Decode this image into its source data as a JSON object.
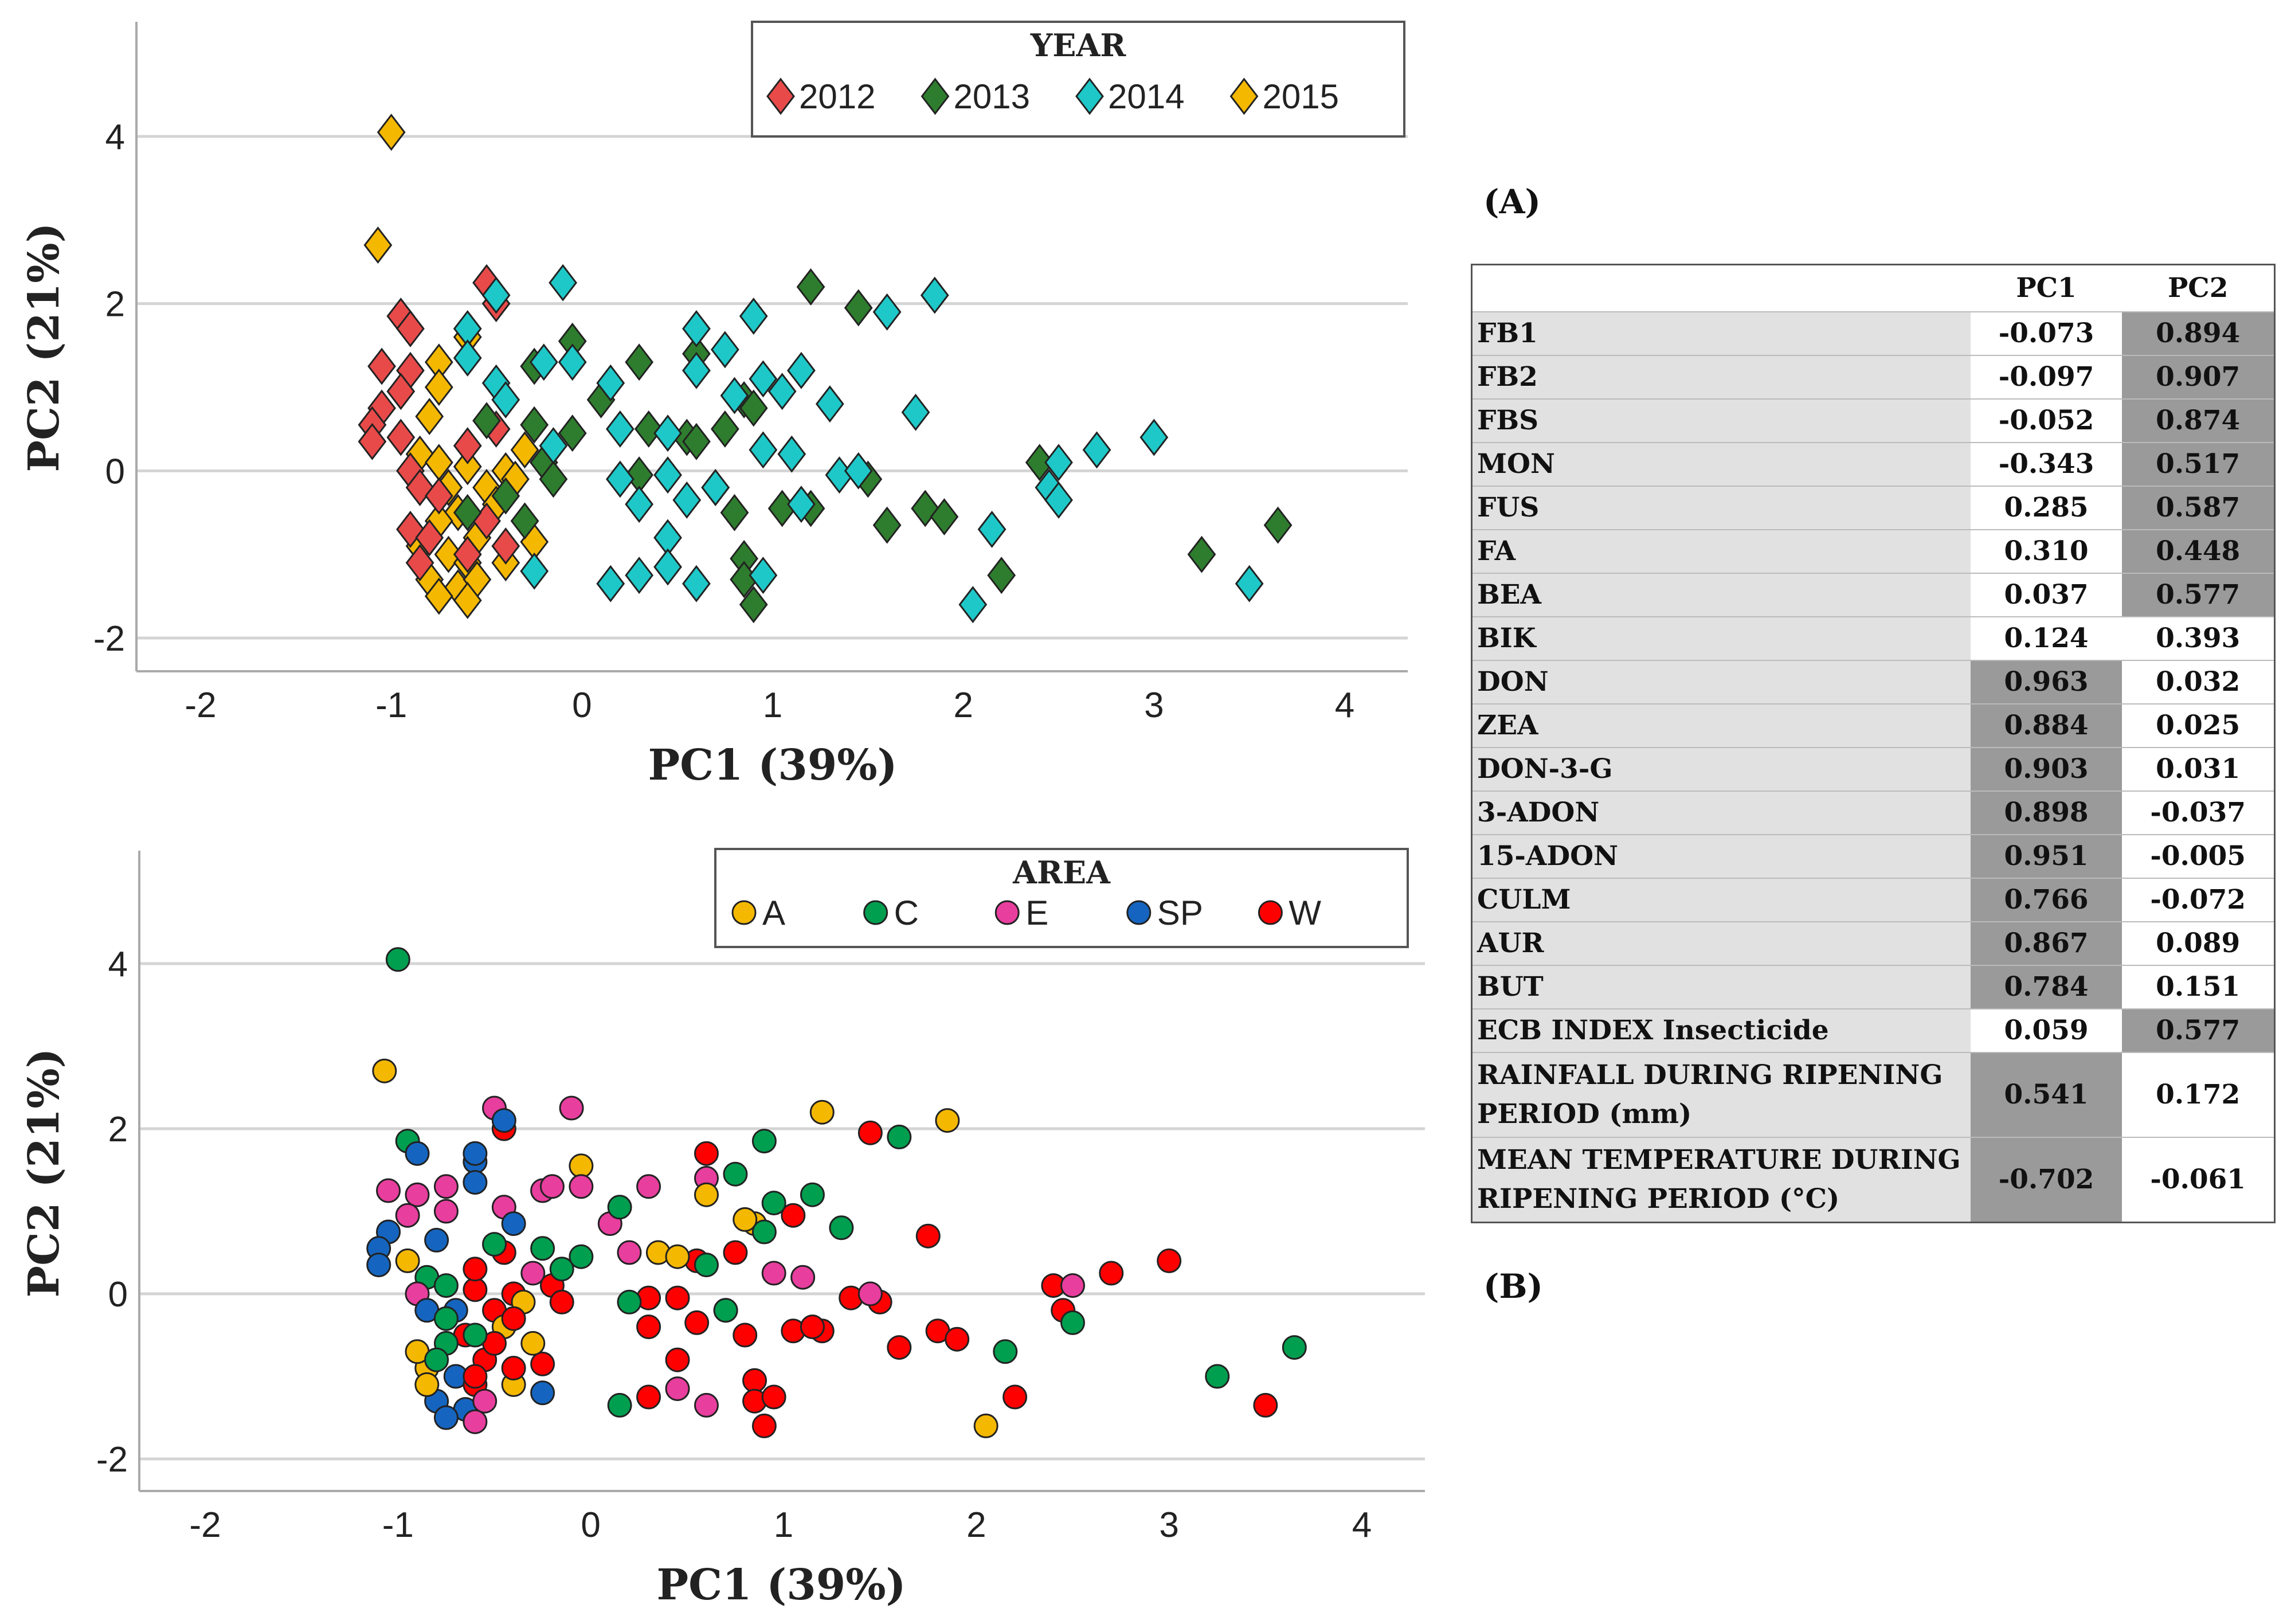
{
  "chart_data": [
    {
      "type": "scatter",
      "panel": "top",
      "marker": "diamond",
      "group_by": "year",
      "xlabel": "PC1 (39%)",
      "ylabel": "PC2 (21%)",
      "xlim": [
        -2.3,
        4.35
      ],
      "ylim": [
        -2.4,
        5.3
      ],
      "xticks": [
        -2,
        -1,
        0,
        1,
        2,
        3,
        4
      ],
      "yticks": [
        -2,
        0,
        2,
        4
      ],
      "grid": "horizontal",
      "legend_position": "top-right",
      "legend_title": "YEAR",
      "legend": [
        {
          "key": "2012",
          "label": "2012",
          "color": "#e84a4a"
        },
        {
          "key": "2013",
          "label": "2013",
          "color": "#2e7d2e"
        },
        {
          "key": "2014",
          "label": "2014",
          "color": "#1ec8c8"
        },
        {
          "key": "2015",
          "label": "2015",
          "color": "#f5b800"
        }
      ]
    },
    {
      "type": "scatter",
      "panel": "bottom",
      "marker": "circle",
      "group_by": "area",
      "xlabel": "PC1 (39%)",
      "ylabel": "PC2 (21%)",
      "xlim": [
        -2.3,
        4.3
      ],
      "ylim": [
        -2.4,
        5.3
      ],
      "xticks": [
        -2,
        -1,
        0,
        1,
        2,
        3,
        4
      ],
      "yticks": [
        -2,
        0,
        2,
        4
      ],
      "grid": "horizontal",
      "legend_position": "top-right",
      "legend_title": "AREA",
      "legend": [
        {
          "key": "A",
          "label": "A",
          "color": "#f5b800"
        },
        {
          "key": "C",
          "label": "C",
          "color": "#009e4f"
        },
        {
          "key": "E",
          "label": "E",
          "color": "#e83e9e"
        },
        {
          "key": "SP",
          "label": "SP",
          "color": "#1565c0"
        },
        {
          "key": "W",
          "label": "W",
          "color": "#ff0000"
        }
      ]
    }
  ],
  "points_fields": [
    "PC1",
    "PC2",
    "year",
    "area"
  ],
  "points": [
    [
      -1.0,
      4.05,
      "2015",
      "C"
    ],
    [
      -1.07,
      2.7,
      "2015",
      "A"
    ],
    [
      -0.6,
      1.6,
      "2015",
      "SP"
    ],
    [
      -0.75,
      1.3,
      "2015",
      "E"
    ],
    [
      -0.75,
      1.0,
      "2015",
      "E"
    ],
    [
      -0.8,
      0.65,
      "2015",
      "SP"
    ],
    [
      -0.3,
      0.25,
      "2015",
      "E"
    ],
    [
      -0.85,
      0.2,
      "2015",
      "C"
    ],
    [
      -0.75,
      0.1,
      "2015",
      "C"
    ],
    [
      -0.6,
      0.05,
      "2015",
      "W"
    ],
    [
      -0.4,
      0.0,
      "2015",
      "W"
    ],
    [
      -0.7,
      -0.2,
      "2015",
      "SP"
    ],
    [
      -0.5,
      -0.2,
      "2015",
      "W"
    ],
    [
      -0.65,
      -0.5,
      "2015",
      "W"
    ],
    [
      -0.75,
      -0.6,
      "2015",
      "C"
    ],
    [
      -0.55,
      -0.8,
      "2015",
      "W"
    ],
    [
      -0.25,
      -0.85,
      "2015",
      "W"
    ],
    [
      -0.7,
      -1.0,
      "2015",
      "SP"
    ],
    [
      -0.6,
      -1.1,
      "2015",
      "W"
    ],
    [
      -0.8,
      -1.3,
      "2015",
      "SP"
    ],
    [
      -0.65,
      -1.4,
      "2015",
      "SP"
    ],
    [
      -0.55,
      -1.3,
      "2015",
      "E"
    ],
    [
      -0.75,
      -1.5,
      "2015",
      "SP"
    ],
    [
      -0.6,
      -1.55,
      "2015",
      "E"
    ],
    [
      -0.4,
      -1.1,
      "2015",
      "A"
    ],
    [
      -0.45,
      -0.4,
      "2015",
      "A"
    ],
    [
      -0.35,
      -0.1,
      "2015",
      "A"
    ],
    [
      -0.85,
      -0.9,
      "2015",
      "A"
    ],
    [
      -0.5,
      2.25,
      "2012",
      "E"
    ],
    [
      -0.45,
      2.0,
      "2012",
      "W"
    ],
    [
      -0.95,
      1.85,
      "2012",
      "C"
    ],
    [
      -0.9,
      1.7,
      "2012",
      "SP"
    ],
    [
      -1.05,
      1.25,
      "2012",
      "E"
    ],
    [
      -0.9,
      1.2,
      "2012",
      "E"
    ],
    [
      -0.95,
      0.95,
      "2012",
      "E"
    ],
    [
      -1.05,
      0.75,
      "2012",
      "SP"
    ],
    [
      -1.1,
      0.55,
      "2012",
      "SP"
    ],
    [
      -1.1,
      0.35,
      "2012",
      "SP"
    ],
    [
      -0.95,
      0.4,
      "2012",
      "A"
    ],
    [
      -0.9,
      0.0,
      "2012",
      "E"
    ],
    [
      -0.85,
      -0.2,
      "2012",
      "SP"
    ],
    [
      -0.75,
      -0.3,
      "2012",
      "C"
    ],
    [
      -0.9,
      -0.7,
      "2012",
      "A"
    ],
    [
      -0.8,
      -0.8,
      "2012",
      "C"
    ],
    [
      -0.5,
      -0.6,
      "2012",
      "W"
    ],
    [
      -0.4,
      -0.9,
      "2012",
      "W"
    ],
    [
      -0.6,
      -1.0,
      "2012",
      "W"
    ],
    [
      -0.85,
      -1.1,
      "2012",
      "A"
    ],
    [
      -0.6,
      0.3,
      "2012",
      "W"
    ],
    [
      -0.45,
      0.5,
      "2012",
      "W"
    ],
    [
      1.2,
      2.2,
      "2013",
      "A"
    ],
    [
      1.45,
      1.95,
      "2013",
      "W"
    ],
    [
      -0.05,
      1.55,
      "2013",
      "A"
    ],
    [
      -0.25,
      1.25,
      "2013",
      "E"
    ],
    [
      0.3,
      1.3,
      "2013",
      "E"
    ],
    [
      0.6,
      1.4,
      "2013",
      "E"
    ],
    [
      -0.5,
      0.6,
      "2013",
      "C"
    ],
    [
      -0.25,
      0.55,
      "2013",
      "C"
    ],
    [
      0.1,
      0.85,
      "2013",
      "E"
    ],
    [
      0.35,
      0.5,
      "2013",
      "A"
    ],
    [
      0.55,
      0.4,
      "2013",
      "W"
    ],
    [
      0.6,
      0.35,
      "2013",
      "C"
    ],
    [
      0.75,
      0.5,
      "2013",
      "W"
    ],
    [
      0.85,
      0.85,
      "2013",
      "A"
    ],
    [
      0.9,
      0.75,
      "2013",
      "C"
    ],
    [
      -0.05,
      0.45,
      "2013",
      "C"
    ],
    [
      -0.2,
      0.1,
      "2013",
      "W"
    ],
    [
      -0.4,
      -0.3,
      "2013",
      "W"
    ],
    [
      -0.3,
      -0.6,
      "2013",
      "A"
    ],
    [
      0.3,
      -0.05,
      "2013",
      "W"
    ],
    [
      0.7,
      -0.2,
      "2013",
      "W"
    ],
    [
      0.8,
      -0.5,
      "2013",
      "W"
    ],
    [
      1.05,
      -0.45,
      "2013",
      "W"
    ],
    [
      1.2,
      -0.45,
      "2013",
      "W"
    ],
    [
      1.5,
      -0.1,
      "2013",
      "W"
    ],
    [
      1.6,
      -0.65,
      "2013",
      "W"
    ],
    [
      1.8,
      -0.45,
      "2013",
      "W"
    ],
    [
      1.9,
      -0.55,
      "2013",
      "W"
    ],
    [
      2.2,
      -1.25,
      "2013",
      "W"
    ],
    [
      0.85,
      -1.05,
      "2013",
      "W"
    ],
    [
      0.85,
      -1.3,
      "2013",
      "W"
    ],
    [
      0.9,
      -1.6,
      "2013",
      "W"
    ],
    [
      2.4,
      0.1,
      "2013",
      "W"
    ],
    [
      3.25,
      -1.0,
      "2013",
      "C"
    ],
    [
      3.65,
      -0.65,
      "2013",
      "C"
    ],
    [
      -0.6,
      -0.5,
      "2013",
      "C"
    ],
    [
      -0.15,
      -0.1,
      "2013",
      "W"
    ],
    [
      -0.1,
      2.25,
      "2014",
      "E"
    ],
    [
      -0.45,
      2.1,
      "2014",
      "SP"
    ],
    [
      -0.6,
      1.7,
      "2014",
      "SP"
    ],
    [
      -0.6,
      1.35,
      "2014",
      "SP"
    ],
    [
      -0.45,
      1.05,
      "2014",
      "E"
    ],
    [
      -0.2,
      1.3,
      "2014",
      "E"
    ],
    [
      -0.05,
      1.3,
      "2014",
      "E"
    ],
    [
      0.15,
      1.05,
      "2014",
      "C"
    ],
    [
      0.6,
      1.7,
      "2014",
      "W"
    ],
    [
      0.6,
      1.2,
      "2014",
      "A"
    ],
    [
      0.75,
      1.45,
      "2014",
      "C"
    ],
    [
      0.9,
      1.85,
      "2014",
      "C"
    ],
    [
      0.8,
      0.9,
      "2014",
      "A"
    ],
    [
      0.95,
      1.1,
      "2014",
      "C"
    ],
    [
      1.05,
      0.95,
      "2014",
      "W"
    ],
    [
      1.15,
      1.2,
      "2014",
      "C"
    ],
    [
      1.3,
      0.8,
      "2014",
      "C"
    ],
    [
      1.6,
      1.9,
      "2014",
      "C"
    ],
    [
      1.85,
      2.1,
      "2014",
      "A"
    ],
    [
      1.75,
      0.7,
      "2014",
      "W"
    ],
    [
      -0.15,
      0.3,
      "2014",
      "C"
    ],
    [
      0.2,
      0.5,
      "2014",
      "E"
    ],
    [
      0.45,
      0.45,
      "2014",
      "A"
    ],
    [
      0.95,
      0.25,
      "2014",
      "E"
    ],
    [
      1.1,
      0.2,
      "2014",
      "E"
    ],
    [
      0.2,
      -0.1,
      "2014",
      "C"
    ],
    [
      0.3,
      -0.4,
      "2014",
      "W"
    ],
    [
      0.45,
      -0.05,
      "2014",
      "W"
    ],
    [
      0.55,
      -0.35,
      "2014",
      "W"
    ],
    [
      0.7,
      -0.2,
      "2014",
      "C"
    ],
    [
      1.35,
      -0.05,
      "2014",
      "W"
    ],
    [
      1.45,
      0.0,
      "2014",
      "E"
    ],
    [
      1.15,
      -0.4,
      "2014",
      "W"
    ],
    [
      0.45,
      -0.8,
      "2014",
      "W"
    ],
    [
      0.45,
      -1.15,
      "2014",
      "E"
    ],
    [
      0.6,
      -1.35,
      "2014",
      "E"
    ],
    [
      0.15,
      -1.35,
      "2014",
      "C"
    ],
    [
      0.3,
      -1.25,
      "2014",
      "W"
    ],
    [
      0.95,
      -1.25,
      "2014",
      "W"
    ],
    [
      2.15,
      -0.7,
      "2014",
      "C"
    ],
    [
      2.05,
      -1.6,
      "2014",
      "A"
    ],
    [
      2.45,
      -0.2,
      "2014",
      "W"
    ],
    [
      2.5,
      -0.35,
      "2014",
      "C"
    ],
    [
      2.5,
      0.1,
      "2014",
      "E"
    ],
    [
      2.7,
      0.25,
      "2014",
      "W"
    ],
    [
      3.0,
      0.4,
      "2014",
      "W"
    ],
    [
      3.5,
      -1.35,
      "2014",
      "W"
    ],
    [
      -0.25,
      -1.2,
      "2014",
      "SP"
    ],
    [
      -0.4,
      0.85,
      "2014",
      "SP"
    ]
  ],
  "labels": {
    "panel_a": "(A)",
    "panel_b": "(B)"
  },
  "table": {
    "headers": [
      "",
      "PC1",
      "PC2"
    ],
    "rows": [
      {
        "name": "FB1",
        "pc1": "-0.073",
        "pc2": "0.894",
        "dark1": false,
        "dark2": true
      },
      {
        "name": "FB2",
        "pc1": "-0.097",
        "pc2": "0.907",
        "dark1": false,
        "dark2": true
      },
      {
        "name": "FBS",
        "pc1": "-0.052",
        "pc2": "0.874",
        "dark1": false,
        "dark2": true
      },
      {
        "name": "MON",
        "pc1": "-0.343",
        "pc2": "0.517",
        "dark1": false,
        "dark2": true
      },
      {
        "name": "FUS",
        "pc1": "0.285",
        "pc2": "0.587",
        "dark1": false,
        "dark2": true
      },
      {
        "name": "FA",
        "pc1": "0.310",
        "pc2": "0.448",
        "dark1": false,
        "dark2": true
      },
      {
        "name": "BEA",
        "pc1": "0.037",
        "pc2": "0.577",
        "dark1": false,
        "dark2": true
      },
      {
        "name": "BIK",
        "pc1": "0.124",
        "pc2": "0.393",
        "dark1": false,
        "dark2": false
      },
      {
        "name": "DON",
        "pc1": "0.963",
        "pc2": "0.032",
        "dark1": true,
        "dark2": false
      },
      {
        "name": "ZEA",
        "pc1": "0.884",
        "pc2": "0.025",
        "dark1": true,
        "dark2": false
      },
      {
        "name": "DON-3-G",
        "pc1": "0.903",
        "pc2": "0.031",
        "dark1": true,
        "dark2": false
      },
      {
        "name": "3-ADON",
        "pc1": "0.898",
        "pc2": "-0.037",
        "dark1": true,
        "dark2": false
      },
      {
        "name": "15-ADON",
        "pc1": "0.951",
        "pc2": "-0.005",
        "dark1": true,
        "dark2": false
      },
      {
        "name": "CULM",
        "pc1": "0.766",
        "pc2": "-0.072",
        "dark1": true,
        "dark2": false
      },
      {
        "name": "AUR",
        "pc1": "0.867",
        "pc2": "0.089",
        "dark1": true,
        "dark2": false
      },
      {
        "name": "BUT",
        "pc1": "0.784",
        "pc2": "0.151",
        "dark1": true,
        "dark2": false
      },
      {
        "name": "ECB INDEX Insecticide",
        "pc1": "0.059",
        "pc2": "0.577",
        "dark1": false,
        "dark2": true
      },
      {
        "name": "RAINFALL DURING RIPENING PERIOD (mm)",
        "pc1": "0.541",
        "pc2": "0.172",
        "dark1": true,
        "dark2": false,
        "tall": true
      },
      {
        "name": "MEAN TEMPERATURE DURING RIPENING PERIOD (°C)",
        "pc1": "-0.702",
        "pc2": "-0.061",
        "dark1": true,
        "dark2": false,
        "tall": true
      }
    ]
  }
}
